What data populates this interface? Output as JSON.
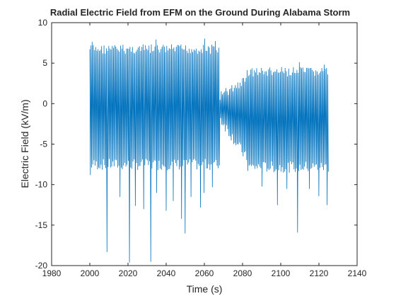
{
  "chart_data": {
    "type": "line",
    "title": "Radial Electric Field from EFM on the Ground During Alabama Storm",
    "xlabel": "Time (s)",
    "ylabel": "Electric Field (kV/m)",
    "xlim": [
      1980,
      2140
    ],
    "ylim": [
      -20,
      10
    ],
    "xticks": [
      1980,
      2000,
      2020,
      2040,
      2060,
      2080,
      2100,
      2120,
      2140
    ],
    "yticks": [
      -20,
      -15,
      -10,
      -5,
      0,
      5,
      10
    ],
    "grid": false,
    "legend": "none",
    "line_color": "#0072bd",
    "series": [
      {
        "x_start": 2000.0,
        "x_end": 2125.0,
        "description_of_envelope": "oscillating signal",
        "segments": [
          {
            "x": [
              2000,
              2068
            ],
            "y_max_typical": 7.3,
            "y_min_typical": -8.2
          },
          {
            "x": [
              2068,
              2082
            ],
            "y_max_typical": 1.5,
            "y_min_typical": -2.5
          },
          {
            "x": [
              2082,
              2125
            ],
            "y_max_typical": 4.5,
            "y_min_typical": -8.5
          }
        ],
        "peaks": [
          {
            "x": 2001,
            "y": 7.6
          },
          {
            "x": 2035,
            "y": 7.9
          },
          {
            "x": 2060,
            "y": 8.0
          },
          {
            "x": 2066,
            "y": 7.7
          },
          {
            "x": 2110,
            "y": 5.1
          },
          {
            "x": 2123,
            "y": 4.8
          }
        ],
        "troughs": [
          {
            "x": 2000,
            "y": -8.8
          },
          {
            "x": 2009,
            "y": -18.3
          },
          {
            "x": 2016,
            "y": -11.5
          },
          {
            "x": 2021,
            "y": -19.6
          },
          {
            "x": 2024,
            "y": -12.6
          },
          {
            "x": 2028,
            "y": -13.0
          },
          {
            "x": 2032,
            "y": -19.5
          },
          {
            "x": 2035,
            "y": -11.0
          },
          {
            "x": 2040,
            "y": -13.2
          },
          {
            "x": 2044,
            "y": -12.0
          },
          {
            "x": 2048,
            "y": -14.2
          },
          {
            "x": 2050,
            "y": -16.0
          },
          {
            "x": 2053,
            "y": -11.5
          },
          {
            "x": 2058,
            "y": -12.8
          },
          {
            "x": 2060,
            "y": -11.0
          },
          {
            "x": 2064,
            "y": -10.3
          },
          {
            "x": 2090,
            "y": -10.2
          },
          {
            "x": 2098,
            "y": -12.5
          },
          {
            "x": 2103,
            "y": -10.5
          },
          {
            "x": 2109,
            "y": -15.9
          },
          {
            "x": 2115,
            "y": -10.5
          },
          {
            "x": 2120,
            "y": -11.4
          },
          {
            "x": 2124,
            "y": -12.5
          }
        ]
      }
    ]
  }
}
